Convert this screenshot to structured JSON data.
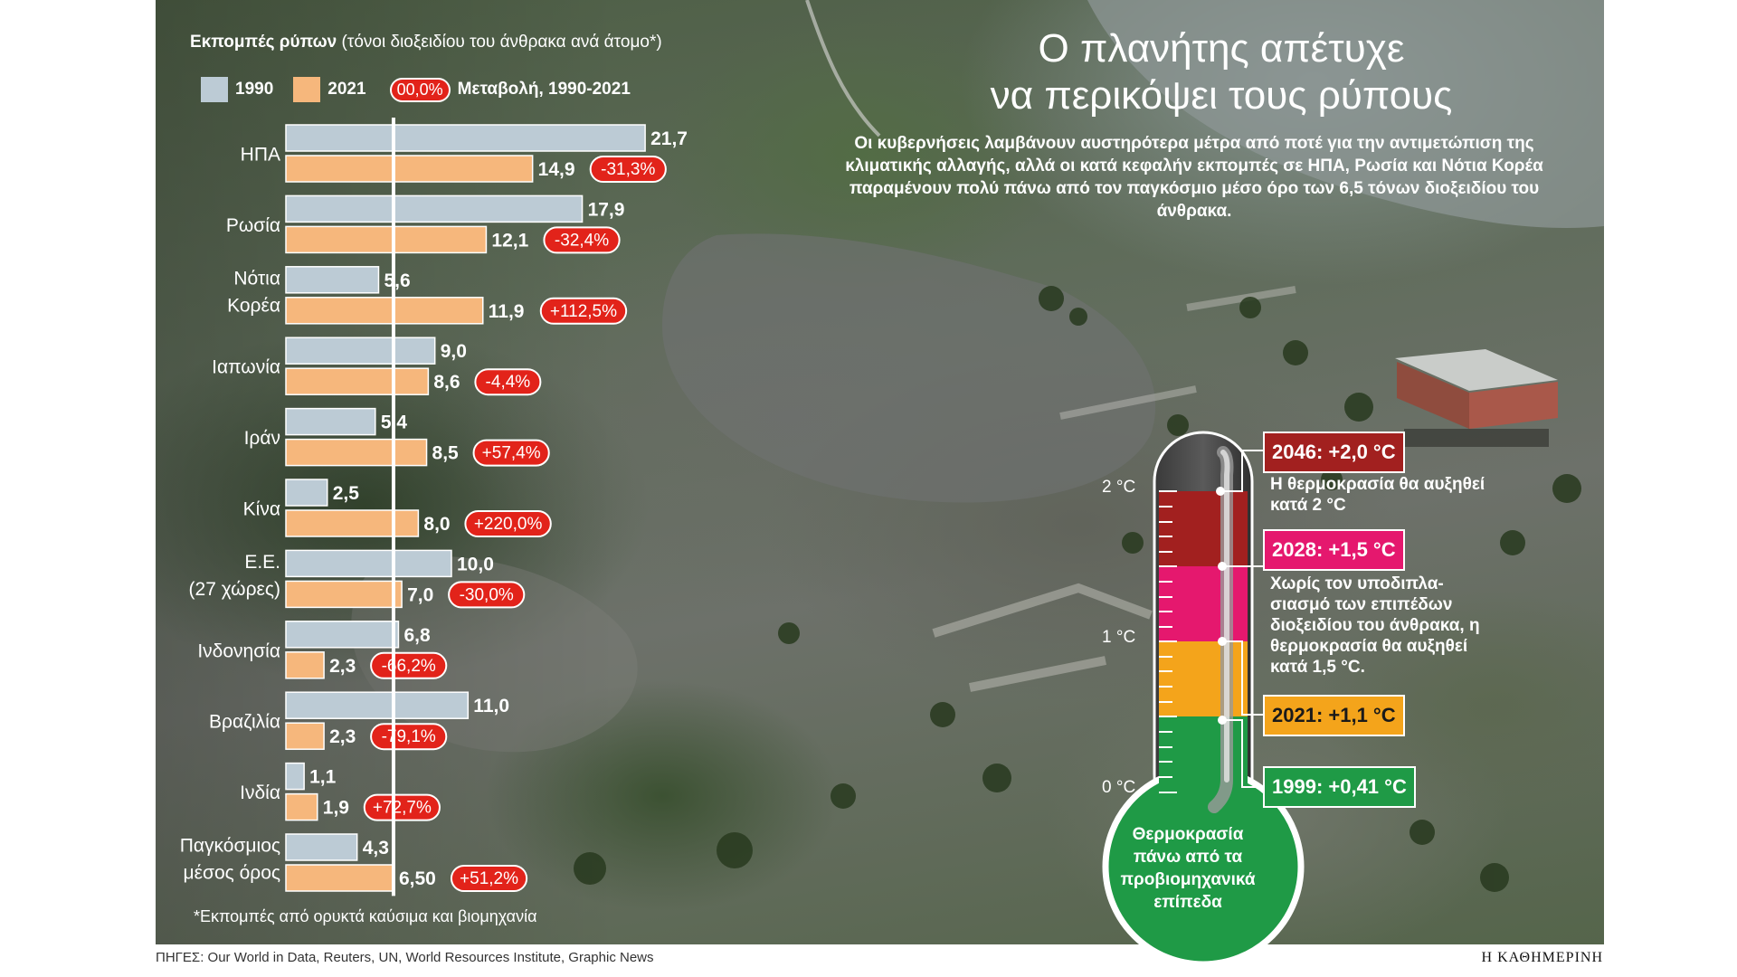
{
  "title_line1": "Ο πλανήτης απέτυχε",
  "title_line2": "να περικόψει τους ρύπους",
  "subtitle": "Οι κυβερνήσεις λαμβάνουν αυστηρότερα μέτρα από ποτέ για την αντιμετώπιση της κλιματικής αλλαγής, αλλά οι κατά κεφαλήν εκπομπές σε ΗΠΑ, Ρωσία και Νότια Κορέα παραμένουν πολύ πάνω από τον παγκόσμιο μέσο όρο των 6,5 τόνων διοξειδίου του άνθρακα.",
  "legend": {
    "title_bold": "Εκπομπές ρύπων",
    "title_rest": " (τόνοι διοξειδίου του άνθρακα ανά άτομο*)",
    "label_1990": "1990",
    "label_2021": "2021",
    "pill": "00,0%",
    "change_label": "Μεταβολή, 1990-2021"
  },
  "footnote": "*Εκπομπές από ορυκτά καύσιμα και βιομηχανία",
  "source": "ΠΗΓΕΣ: Our World in Data, Reuters, UN, World Resources Institute, Graphic News",
  "brand": "Η ΚΑΘΗΜΕΡΙΝΗ",
  "colors": {
    "bar_1990": "#bccbd5",
    "bar_2021": "#f6b77c",
    "change_pill": "#e2231a"
  },
  "chart_data": {
    "type": "bar",
    "orientation": "horizontal",
    "unit": "τόνοι διοξειδίου του άνθρακα ανά άτομο",
    "reference_line": 6.5,
    "categories": [
      {
        "label": [
          "ΗΠΑ"
        ],
        "v1990": 21.7,
        "v2021": 14.9,
        "t1990": "21,7",
        "t2021": "14,9",
        "change": "-31,3%"
      },
      {
        "label": [
          "Ρωσία"
        ],
        "v1990": 17.9,
        "v2021": 12.1,
        "t1990": "17,9",
        "t2021": "12,1",
        "change": "-32,4%"
      },
      {
        "label": [
          "Νότια",
          "Κορέα"
        ],
        "v1990": 5.6,
        "v2021": 11.9,
        "t1990": "5,6",
        "t2021": "11,9",
        "change": "+112,5%"
      },
      {
        "label": [
          "Ιαπωνία"
        ],
        "v1990": 9.0,
        "v2021": 8.6,
        "t1990": "9,0",
        "t2021": "8,6",
        "change": "-4,4%"
      },
      {
        "label": [
          "Ιράν"
        ],
        "v1990": 5.4,
        "v2021": 8.5,
        "t1990": "5,4",
        "t2021": "8,5",
        "change": "+57,4%"
      },
      {
        "label": [
          "Κίνα"
        ],
        "v1990": 2.5,
        "v2021": 8.0,
        "t1990": "2,5",
        "t2021": "8,0",
        "change": "+220,0%"
      },
      {
        "label": [
          "Ε.Ε.",
          "(27 χώρες)"
        ],
        "v1990": 10.0,
        "v2021": 7.0,
        "t1990": "10,0",
        "t2021": "7,0",
        "change": "-30,0%"
      },
      {
        "label": [
          "Ινδονησία"
        ],
        "v1990": 6.8,
        "v2021": 2.3,
        "t1990": "6,8",
        "t2021": "2,3",
        "change": "-66,2%"
      },
      {
        "label": [
          "Βραζιλία"
        ],
        "v1990": 11.0,
        "v2021": 2.3,
        "t1990": "11,0",
        "t2021": "2,3",
        "change": "-79,1%"
      },
      {
        "label": [
          "Ινδία"
        ],
        "v1990": 1.1,
        "v2021": 1.9,
        "t1990": "1,1",
        "t2021": "1,9",
        "change": "+72,7%"
      },
      {
        "label": [
          "Παγκόσμιος",
          "μέσος όρος"
        ],
        "v1990": 4.3,
        "v2021": 6.5,
        "t1990": "4,3",
        "t2021": "6,50",
        "change": "+51,2%"
      }
    ]
  },
  "thermometer": {
    "scale_labels": [
      "2 °C",
      "1 °C",
      "0 °C"
    ],
    "bulb_text": "Θερμοκρασία πάνω από τα προβιομηχανικά επίπεδα",
    "milestones": [
      {
        "tag": "2046: +2,0 °C",
        "value": 2.0,
        "color": "#a2201f",
        "text_color": "#ffffff",
        "note": "Η θερμοκρασία θα αυξηθεί κατά 2 °C"
      },
      {
        "tag": "2028: +1,5 °C",
        "value": 1.5,
        "color": "#e5186e",
        "text_color": "#ffffff",
        "note": "Χωρίς τον υποδιπλα- σιασμό των επιπέδων διοξειδίου του άνθρακα, η θερμοκρασία θα αυξηθεί κατά 1,5 °C."
      },
      {
        "tag": "2021: +1,1 °C",
        "value": 1.1,
        "color": "#f4a41b",
        "text_color": "#1a1a1a",
        "note": ""
      },
      {
        "tag": "1999: +0,41 °C",
        "value": 0.41,
        "color": "#1f9a46",
        "text_color": "#ffffff",
        "note": ""
      }
    ]
  }
}
